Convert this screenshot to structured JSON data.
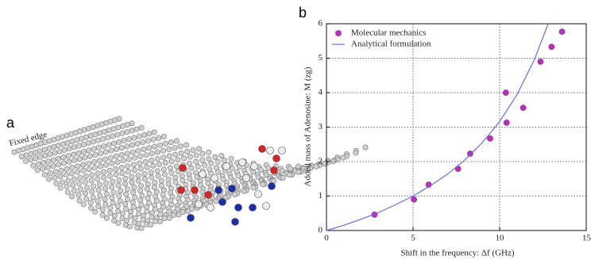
{
  "panel_a": {
    "label": "a",
    "annotation": "Fixed edge"
  },
  "chart_data": {
    "type": "scatter",
    "panel_label": "b",
    "xlabel": "Shift in the frequency: Δf (GHz)",
    "ylabel": "Added mass of Adenosine: M (zg)",
    "xlim": [
      0,
      15
    ],
    "xticks": [
      0,
      5,
      10,
      15
    ],
    "ylim": [
      0,
      6
    ],
    "yticks": [
      0,
      1,
      2,
      3,
      4,
      5,
      6
    ],
    "grid": true,
    "legend": "upper left",
    "series": [
      {
        "name": "Molecular mechanics",
        "color": "#cc22cc",
        "style": "markers",
        "x": [
          2.77,
          5.05,
          5.9,
          7.6,
          8.3,
          9.45,
          10.36,
          10.4,
          11.36,
          12.36,
          13.0,
          13.6
        ],
        "values": [
          0.46,
          0.9,
          1.33,
          1.79,
          2.23,
          2.67,
          4.0,
          3.13,
          3.56,
          4.9,
          5.33,
          5.77
        ]
      },
      {
        "name": "Analytical formulation",
        "color": "#6a6af0",
        "style": "line",
        "x": [
          0,
          1,
          2,
          3,
          4,
          5,
          6,
          7,
          8,
          9,
          10,
          11,
          12,
          12.8
        ],
        "values": [
          0,
          0.15,
          0.33,
          0.52,
          0.75,
          1.0,
          1.3,
          1.64,
          2.05,
          2.55,
          3.16,
          3.94,
          4.95,
          6.0
        ]
      }
    ]
  }
}
